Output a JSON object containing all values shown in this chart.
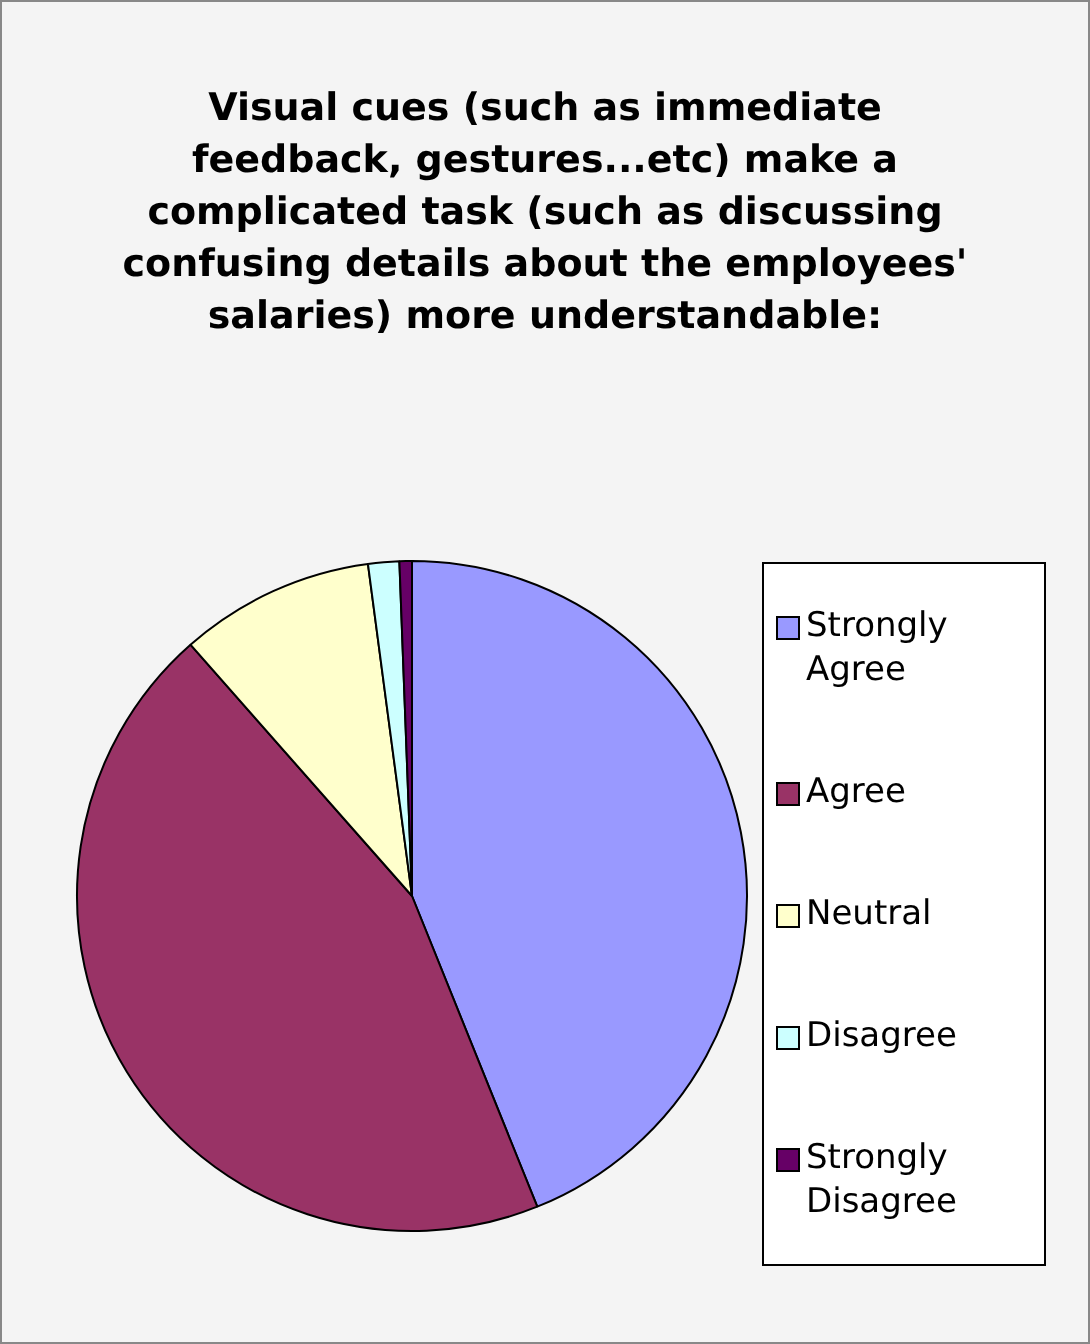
{
  "chart_data": {
    "type": "pie",
    "title": "Visual cues (such as immediate feedback, gestures...etc) make a complicated task (such as discussing confusing details about the employees' salaries) more understandable:",
    "categories": [
      "Strongly Agree",
      "Agree",
      "Neutral",
      "Disagree",
      "Strongly Disagree"
    ],
    "values": [
      43.9,
      44.6,
      9.4,
      1.5,
      0.6
    ],
    "colors": [
      "#9999ff",
      "#993366",
      "#ffffcc",
      "#ccffff",
      "#660066"
    ],
    "legend": "right"
  }
}
